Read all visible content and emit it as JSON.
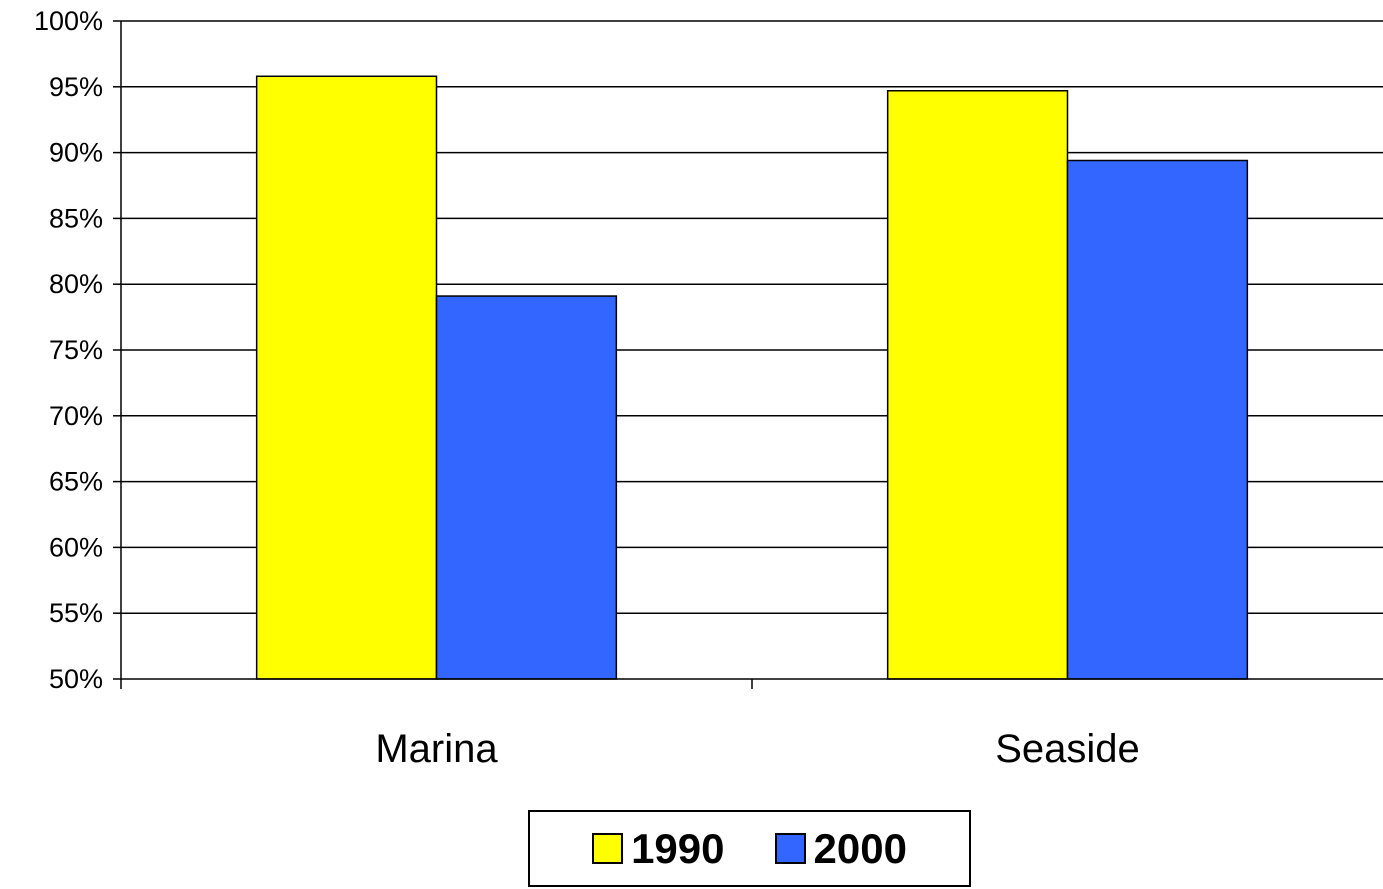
{
  "chart_data": {
    "type": "bar",
    "categories": [
      "Marina",
      "Seaside"
    ],
    "series": [
      {
        "name": "1990",
        "values": [
          95.8,
          94.7
        ],
        "color": "#ffff00"
      },
      {
        "name": "2000",
        "values": [
          79.1,
          89.4
        ],
        "color": "#3366ff"
      }
    ],
    "ylim": [
      50,
      100
    ],
    "yticks": [
      "50%",
      "55%",
      "60%",
      "65%",
      "70%",
      "75%",
      "80%",
      "85%",
      "90%",
      "95%",
      "100%"
    ],
    "y_unit": "%",
    "grid": true,
    "legend_position": "bottom",
    "title": "",
    "xlabel": "",
    "ylabel": ""
  }
}
